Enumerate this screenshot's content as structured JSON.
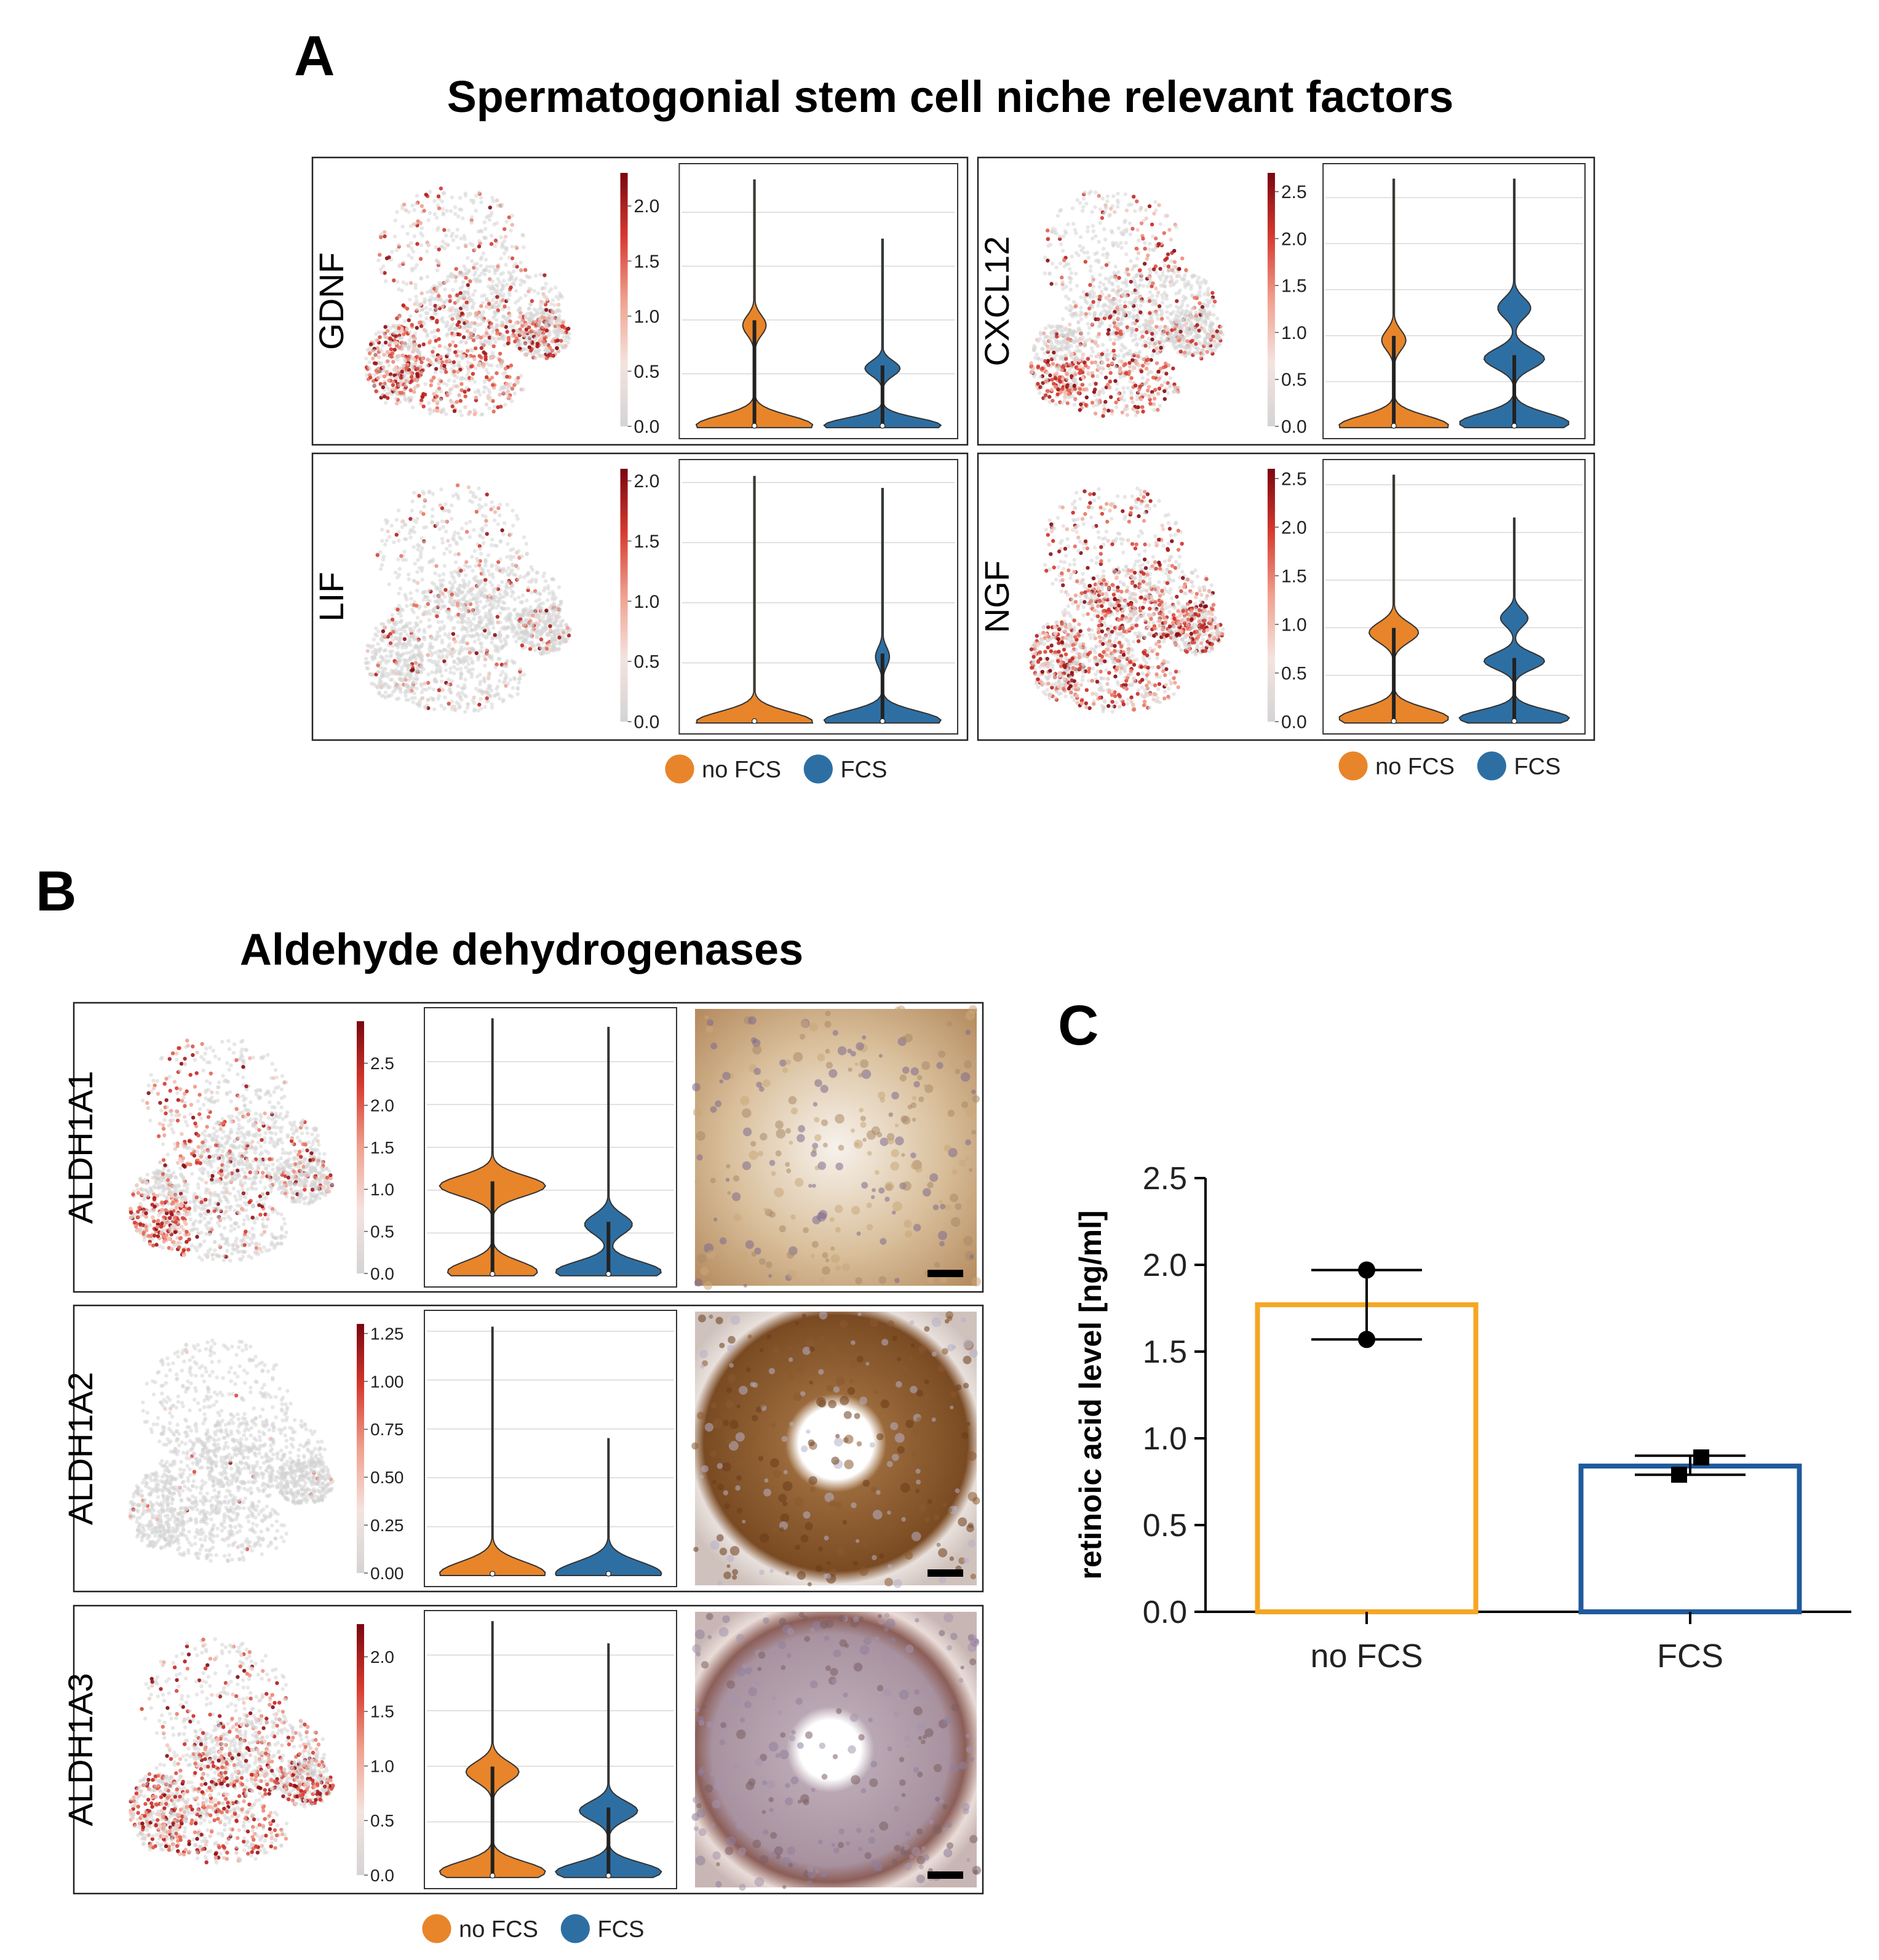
{
  "colors": {
    "no_fcs": "#E8852A",
    "fcs": "#2E6FA3",
    "bar_no_fcs": "#F5A623",
    "bar_fcs": "#1F5A9C",
    "cmap_low": "#d4d4d4",
    "cmap_high": "#8b0a12"
  },
  "panel_a": {
    "letter": "A",
    "title": "Spermatogonial stem cell niche relevant factors",
    "genes": [
      {
        "name": "GDNF",
        "colorbar_ticks": [
          "0.0",
          "0.5",
          "1.0",
          "1.5",
          "2.0"
        ],
        "colorbar_max": 2.3,
        "violin_ymax": 2.35,
        "violins": [
          {
            "group": "no FCS",
            "max": 2.3,
            "modes": [
              [
                0.02,
                1.0
              ],
              [
                0.95,
                0.2
              ]
            ]
          },
          {
            "group": "FCS",
            "max": 1.75,
            "modes": [
              [
                0.02,
                1.0
              ],
              [
                0.55,
                0.3
              ]
            ]
          }
        ]
      },
      {
        "name": "CXCL12",
        "colorbar_ticks": [
          "0.0",
          "0.5",
          "1.0",
          "1.5",
          "2.0",
          "2.5"
        ],
        "colorbar_max": 2.7,
        "violin_ymax": 2.75,
        "violins": [
          {
            "group": "no FCS",
            "max": 2.7,
            "modes": [
              [
                0.02,
                1.0
              ],
              [
                0.95,
                0.22
              ]
            ]
          },
          {
            "group": "FCS",
            "max": 2.7,
            "modes": [
              [
                0.05,
                1.0
              ],
              [
                0.75,
                0.55
              ],
              [
                1.3,
                0.3
              ]
            ]
          }
        ]
      },
      {
        "name": "LIF",
        "colorbar_ticks": [
          "0.0",
          "0.5",
          "1.0",
          "1.5",
          "2.0"
        ],
        "colorbar_max": 2.1,
        "violin_ymax": 2.1,
        "violins": [
          {
            "group": "no FCS",
            "max": 2.05,
            "modes": [
              [
                0.01,
                1.0
              ]
            ]
          },
          {
            "group": "FCS",
            "max": 1.95,
            "modes": [
              [
                0.02,
                1.0
              ],
              [
                0.55,
                0.12
              ]
            ]
          }
        ]
      },
      {
        "name": "NGF",
        "colorbar_ticks": [
          "0.0",
          "0.5",
          "1.0",
          "1.5",
          "2.0",
          "2.5"
        ],
        "colorbar_max": 2.6,
        "violin_ymax": 2.65,
        "violins": [
          {
            "group": "no FCS",
            "max": 2.6,
            "modes": [
              [
                0.05,
                1.0
              ],
              [
                0.95,
                0.45
              ]
            ]
          },
          {
            "group": "FCS",
            "max": 2.15,
            "modes": [
              [
                0.05,
                1.0
              ],
              [
                0.65,
                0.55
              ],
              [
                1.1,
                0.25
              ]
            ]
          }
        ]
      }
    ],
    "legend": [
      {
        "label": "no FCS",
        "color_key": "no_fcs"
      },
      {
        "label": "FCS",
        "color_key": "fcs"
      }
    ]
  },
  "panel_b": {
    "letter": "B",
    "title": "Aldehyde dehydrogenases",
    "genes": [
      {
        "name": "ALDH1A1",
        "colorbar_ticks": [
          "0.0",
          "0.5",
          "1.0",
          "1.5",
          "2.0",
          "2.5"
        ],
        "colorbar_max": 3.0,
        "violin_ymax": 3.0,
        "violins": [
          {
            "group": "no FCS",
            "max": 3.0,
            "modes": [
              [
                0.05,
                0.85
              ],
              [
                1.05,
                1.0
              ]
            ]
          },
          {
            "group": "FCS",
            "max": 2.9,
            "modes": [
              [
                0.05,
                1.0
              ],
              [
                0.6,
                0.45
              ]
            ]
          }
        ]
      },
      {
        "name": "ALDH1A2",
        "colorbar_ticks": [
          "0.00",
          "0.25",
          "0.50",
          "0.75",
          "1.00",
          "1.25"
        ],
        "colorbar_max": 1.3,
        "violin_ymax": 1.3,
        "violins": [
          {
            "group": "no FCS",
            "max": 1.27,
            "modes": [
              [
                0.01,
                1.0
              ]
            ]
          },
          {
            "group": "FCS",
            "max": 0.7,
            "modes": [
              [
                0.01,
                1.0
              ]
            ]
          }
        ]
      },
      {
        "name": "ALDH1A3",
        "colorbar_ticks": [
          "0.0",
          "0.5",
          "1.0",
          "1.5",
          "2.0"
        ],
        "colorbar_max": 2.3,
        "violin_ymax": 2.3,
        "violins": [
          {
            "group": "no FCS",
            "max": 2.3,
            "modes": [
              [
                0.05,
                1.0
              ],
              [
                0.95,
                0.5
              ]
            ]
          },
          {
            "group": "FCS",
            "max": 2.1,
            "modes": [
              [
                0.05,
                1.0
              ],
              [
                0.6,
                0.55
              ]
            ]
          }
        ]
      }
    ],
    "legend": [
      {
        "label": "no FCS",
        "color_key": "no_fcs"
      },
      {
        "label": "FCS",
        "color_key": "fcs"
      }
    ]
  },
  "panel_c": {
    "letter": "C",
    "chart_data": {
      "type": "bar",
      "categories": [
        "no FCS",
        "FCS"
      ],
      "values": [
        1.77,
        0.84
      ],
      "error_high": [
        1.97,
        0.9
      ],
      "error_low": [
        1.57,
        0.79
      ],
      "points": [
        [
          1.97,
          1.57
        ],
        [
          0.89,
          0.79
        ]
      ],
      "point_markers": [
        "circle",
        "square"
      ],
      "ylabel": "retinoic acid level [ng/ml]",
      "xlabel": "",
      "ylim": [
        0,
        2.5
      ],
      "yticks": [
        "0.0",
        "0.5",
        "1.0",
        "1.5",
        "2.0",
        "2.5"
      ]
    }
  }
}
